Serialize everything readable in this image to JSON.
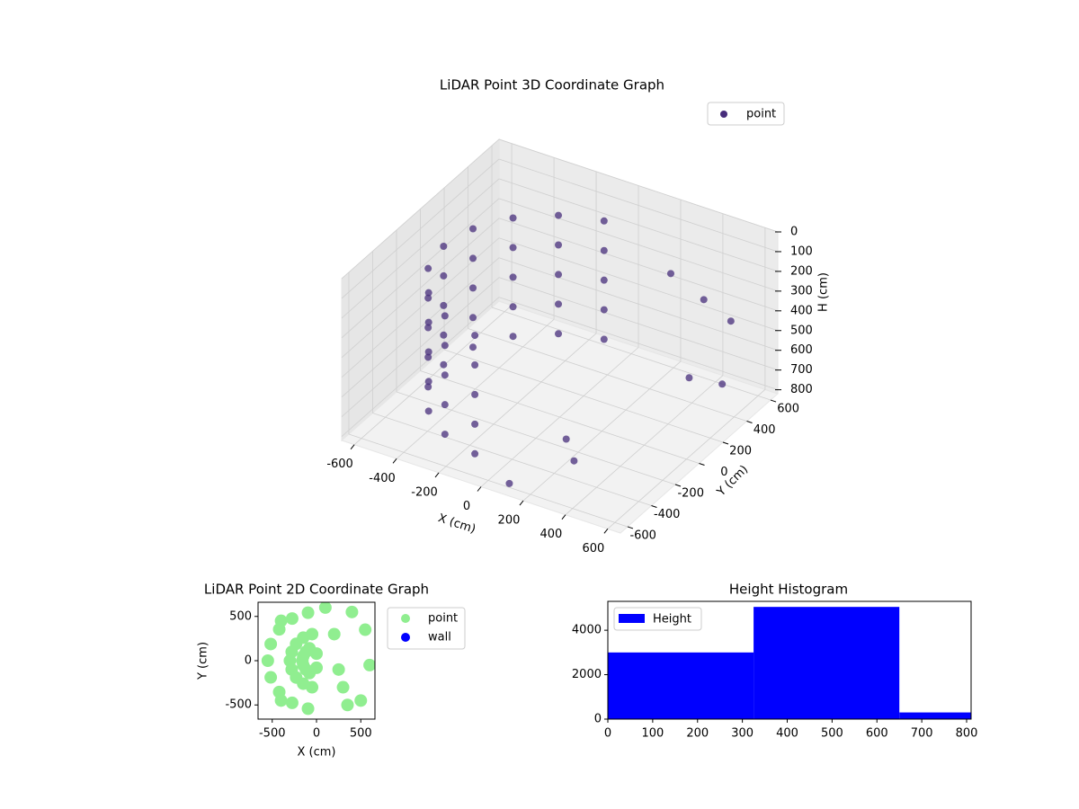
{
  "chart_data": [
    {
      "type": "scatter3d",
      "title": "LiDAR Point 3D Coordinate Graph",
      "xlabel": "X (cm)",
      "ylabel": "Y (cm)",
      "zlabel": "H (cm)",
      "xlim": [
        -660,
        660
      ],
      "ylim": [
        -660,
        660
      ],
      "zlim": [
        0,
        820
      ],
      "z_inverted": true,
      "xticks": [
        -600,
        -400,
        -200,
        0,
        200,
        400,
        600
      ],
      "yticks": [
        -600,
        -400,
        -200,
        0,
        200,
        400,
        600
      ],
      "zticks": [
        0,
        100,
        200,
        300,
        400,
        500,
        600,
        700,
        800
      ],
      "grid": true,
      "legend": "upper right",
      "series": [
        {
          "name": "point",
          "color": "#472d7b",
          "x": [
            -96,
            -275,
            -421,
            -517,
            -550,
            -517,
            -421,
            -275,
            -96,
            -96,
            -275,
            -421,
            -517,
            -550,
            -517,
            -421,
            -275,
            -96,
            -96,
            -275,
            -421,
            -517,
            -550,
            -517,
            -421,
            -275,
            -96,
            -96,
            -275,
            -421,
            -517,
            -550,
            -517,
            -421,
            -275,
            -96,
            -96,
            -275,
            -421,
            -517,
            -550,
            -517,
            -421,
            -275,
            -96,
            300,
            400,
            500,
            200,
            350,
            100,
            500,
            600
          ],
          "y": [
            542,
            476,
            354,
            188,
            0,
            -188,
            -354,
            -476,
            -542,
            542,
            476,
            354,
            188,
            0,
            -188,
            -354,
            -476,
            -542,
            542,
            476,
            354,
            188,
            0,
            -188,
            -354,
            -476,
            -542,
            542,
            476,
            354,
            188,
            0,
            -188,
            -354,
            -476,
            -542,
            542,
            476,
            354,
            188,
            0,
            -188,
            -354,
            -476,
            -542,
            400,
            500,
            550,
            -300,
            -500,
            -600,
            200,
            300
          ],
          "h": [
            150,
            150,
            150,
            150,
            150,
            150,
            150,
            150,
            150,
            300,
            300,
            300,
            300,
            300,
            300,
            300,
            300,
            300,
            450,
            450,
            450,
            450,
            450,
            450,
            450,
            450,
            450,
            600,
            600,
            600,
            600,
            600,
            600,
            600,
            600,
            600,
            750,
            750,
            750,
            750,
            750,
            750,
            750,
            750,
            750,
            200,
            350,
            450,
            700,
            650,
            800,
            550,
            600
          ]
        }
      ]
    },
    {
      "type": "scatter",
      "title": "LiDAR Point 2D Coordinate Graph",
      "xlabel": "X (cm)",
      "ylabel": "Y (cm)",
      "xlim": [
        -660,
        660
      ],
      "ylim": [
        -660,
        660
      ],
      "xticks": [
        -500,
        0,
        500
      ],
      "yticks": [
        -500,
        0,
        500
      ],
      "legend": "outside right",
      "series": [
        {
          "name": "point",
          "color": "#90ee90",
          "x": [
            -96,
            -275,
            -421,
            -517,
            -550,
            -517,
            -421,
            -275,
            -96,
            -50,
            -150,
            -230,
            -280,
            -300,
            -280,
            -230,
            -150,
            -50,
            0,
            -80,
            -120,
            -150,
            -160,
            -150,
            -120,
            -80,
            0,
            400,
            550,
            600,
            500,
            350,
            250,
            200,
            100,
            300,
            -400,
            -400
          ],
          "y": [
            542,
            476,
            354,
            188,
            0,
            -188,
            -354,
            -476,
            -542,
            300,
            260,
            190,
            100,
            0,
            -100,
            -190,
            -260,
            -300,
            80,
            140,
            100,
            50,
            0,
            -50,
            -100,
            -140,
            -80,
            550,
            350,
            -50,
            -450,
            -500,
            -100,
            300,
            600,
            -300,
            450,
            -450
          ]
        },
        {
          "name": "wall",
          "color": "#0000ff",
          "x": [],
          "y": []
        }
      ]
    },
    {
      "type": "histogram",
      "title": "Height Histogram",
      "bins": [
        0,
        325,
        650,
        810
      ],
      "counts": [
        3000,
        5050,
        300
      ],
      "series_name": "Height",
      "color": "#0000ff",
      "xlim": [
        0,
        810
      ],
      "ylim": [
        0,
        5300
      ],
      "xticks": [
        0,
        100,
        200,
        300,
        400,
        500,
        600,
        700,
        800
      ],
      "yticks": [
        0,
        2000,
        4000
      ],
      "legend": "upper left"
    }
  ]
}
